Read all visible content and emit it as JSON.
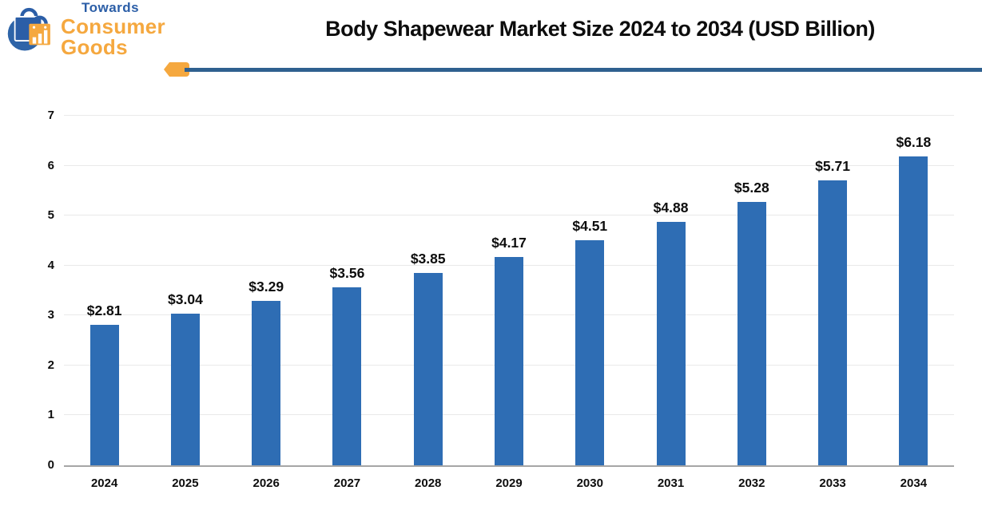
{
  "header": {
    "logo": {
      "line1": "Towards",
      "line2": "Consumer Goods"
    },
    "title": "Body Shapewear Market Size 2024 to 2034 (USD Billion)"
  },
  "icons": {
    "logo": "shopping-bags-icon",
    "divider": "left-arrow-tag-icon"
  },
  "colors": {
    "bar": "#2E6DB4",
    "logo_blue": "#2B5EA7",
    "accent_orange": "#F5A83F",
    "divider_blue": "#2F608F",
    "grid": "#E9E9E9",
    "axis": "#A6A6A6",
    "text": "#0D0D0D"
  },
  "chart_data": {
    "type": "bar",
    "title": "Body Shapewear Market Size 2024 to 2034 (USD Billion)",
    "categories": [
      "2024",
      "2025",
      "2026",
      "2027",
      "2028",
      "2029",
      "2030",
      "2031",
      "2032",
      "2033",
      "2034"
    ],
    "values": [
      2.81,
      3.04,
      3.29,
      3.56,
      3.85,
      4.17,
      4.51,
      4.88,
      5.28,
      5.71,
      6.18
    ],
    "value_labels": [
      "$2.81",
      "$3.04",
      "$3.29",
      "$3.56",
      "$3.85",
      "$4.17",
      "$4.51",
      "$4.88",
      "$5.28",
      "$5.71",
      "$6.18"
    ],
    "xlabel": "",
    "ylabel": "",
    "ylim": [
      0,
      7
    ],
    "yticks": [
      0,
      1,
      2,
      3,
      4,
      5,
      6,
      7
    ],
    "grid": true,
    "legend": false,
    "bar_color": "#2E6DB4"
  }
}
